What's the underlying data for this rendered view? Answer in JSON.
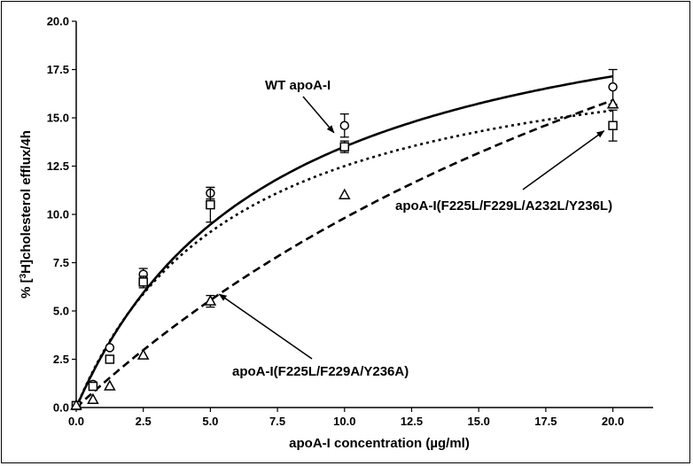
{
  "chart_data": {
    "type": "scatter",
    "xlabel": "apoA-I concentration (µg/ml)",
    "ylabel_parts": [
      "% [",
      "3",
      "H]cholesterol efflux/4h"
    ],
    "xlim": [
      0,
      21.5
    ],
    "ylim": [
      0,
      20
    ],
    "x_ticks": [
      "0.0",
      "2.5",
      "5.0",
      "7.5",
      "10.0",
      "12.5",
      "15.0",
      "17.5",
      "20.0"
    ],
    "y_ticks": [
      "0.0",
      "2.5",
      "5.0",
      "7.5",
      "10.0",
      "12.5",
      "15.0",
      "17.5",
      "20.0"
    ],
    "series": [
      {
        "name": "WT apoA-I",
        "marker": "circle",
        "line_style": "solid",
        "x": [
          0,
          0.625,
          1.25,
          2.5,
          5,
          10,
          20
        ],
        "y": [
          0.1,
          1.2,
          3.1,
          6.9,
          11.1,
          14.6,
          16.6
        ],
        "err": [
          0,
          0,
          0,
          0.3,
          0.3,
          0.6,
          0.9
        ],
        "curve": {
          "type": "hyperbola",
          "ymax": 23.5,
          "k": 7.4
        }
      },
      {
        "name": "apoA-I(F225L/F229L/A232L/Y236L)",
        "marker": "square",
        "line_style": "dotted",
        "x": [
          0,
          0.625,
          1.25,
          2.5,
          5,
          10,
          20
        ],
        "y": [
          0.1,
          1.1,
          2.5,
          6.5,
          10.5,
          13.5,
          14.6
        ],
        "err": [
          0,
          0,
          0,
          0.3,
          0.9,
          0.3,
          0.8
        ],
        "curve": {
          "type": "hyperbola",
          "ymax": 20.0,
          "k": 6.0
        }
      },
      {
        "name": "apoA-I(F225L/F229A/Y236A)",
        "marker": "triangle",
        "line_style": "dashed",
        "x": [
          0,
          0.625,
          1.25,
          2.5,
          5,
          10,
          20
        ],
        "y": [
          0.1,
          0.4,
          1.1,
          2.7,
          5.5,
          11.0,
          15.7
        ],
        "err": [
          0,
          0,
          0,
          0,
          0.3,
          0,
          0
        ],
        "curve": {
          "type": "hyperbola",
          "ymax": 42.0,
          "k": 32.8
        }
      }
    ],
    "annotations": [
      {
        "text": "WT apoA-I",
        "target_series": 0,
        "target_x": 10,
        "target_y": 14.6
      },
      {
        "text": "apoA-I(F225L/F229L/A232L/Y236L)",
        "target_series": 1,
        "target_x": 20,
        "target_y": 14.6
      },
      {
        "text": "apoA-I(F225L/F229A/Y236A)",
        "target_series": 2,
        "target_x": 5,
        "target_y": 5.5
      }
    ],
    "grid": false,
    "legend": "none"
  }
}
